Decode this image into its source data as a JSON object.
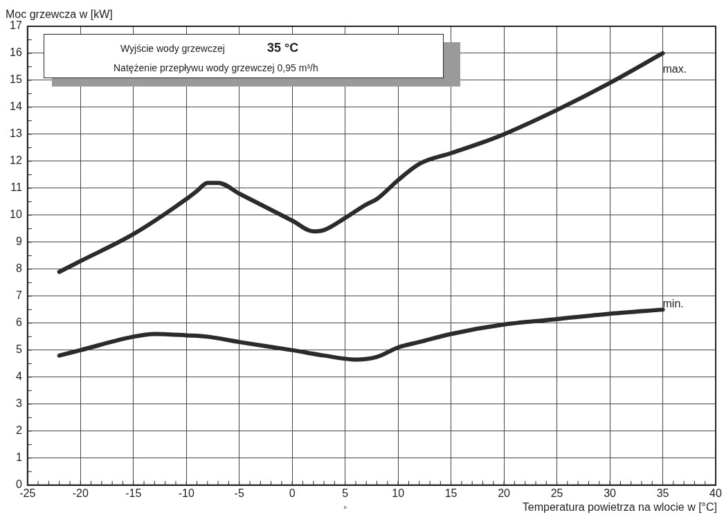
{
  "chart_data": {
    "type": "line",
    "xlabel": "Temperatura powietrza na wlocie w [°C]",
    "ylabel": "Moc grzewcza w [kW]",
    "annotations": [
      "Wyjście wody grzewczej",
      "35 °C",
      "Natężenie przepływu wody grzewczej 0,95 m³/h",
      "°"
    ],
    "series": [
      {
        "name": "max.",
        "color": "#2b2b2b",
        "x": [
          -22,
          -20,
          -15,
          -10,
          -9,
          -8,
          -7,
          -5,
          0,
          2,
          3,
          5,
          7,
          8,
          10,
          12,
          15,
          18,
          20,
          25,
          30,
          35
        ],
        "values": [
          7.9,
          8.3,
          9.3,
          10.6,
          10.9,
          11.2,
          11.2,
          10.8,
          9.8,
          9.4,
          9.45,
          9.9,
          10.4,
          10.6,
          11.3,
          11.9,
          12.3,
          12.7,
          13.0,
          13.9,
          14.9,
          16.0
        ]
      },
      {
        "name": "min.",
        "color": "#2b2b2b",
        "x": [
          -22,
          -20,
          -15,
          -13,
          -10,
          -8,
          -5,
          0,
          3,
          6,
          8,
          10,
          12,
          15,
          20,
          25,
          30,
          35
        ],
        "values": [
          4.8,
          5.0,
          5.5,
          5.6,
          5.55,
          5.5,
          5.3,
          5.0,
          4.8,
          4.65,
          4.75,
          5.1,
          5.3,
          5.6,
          5.95,
          6.15,
          6.35,
          6.5
        ]
      }
    ],
    "xlim": [
      -25,
      40
    ],
    "xticks": [
      -25,
      -20,
      -15,
      -10,
      -5,
      0,
      5,
      10,
      15,
      20,
      25,
      30,
      35,
      40
    ],
    "ylim": [
      0,
      17
    ],
    "yticks": [
      0,
      1,
      2,
      3,
      4,
      5,
      6,
      7,
      8,
      9,
      10,
      11,
      12,
      13,
      14,
      15,
      16,
      17
    ],
    "grid": true,
    "legend": false,
    "marker": "none",
    "line_style": "solid"
  }
}
